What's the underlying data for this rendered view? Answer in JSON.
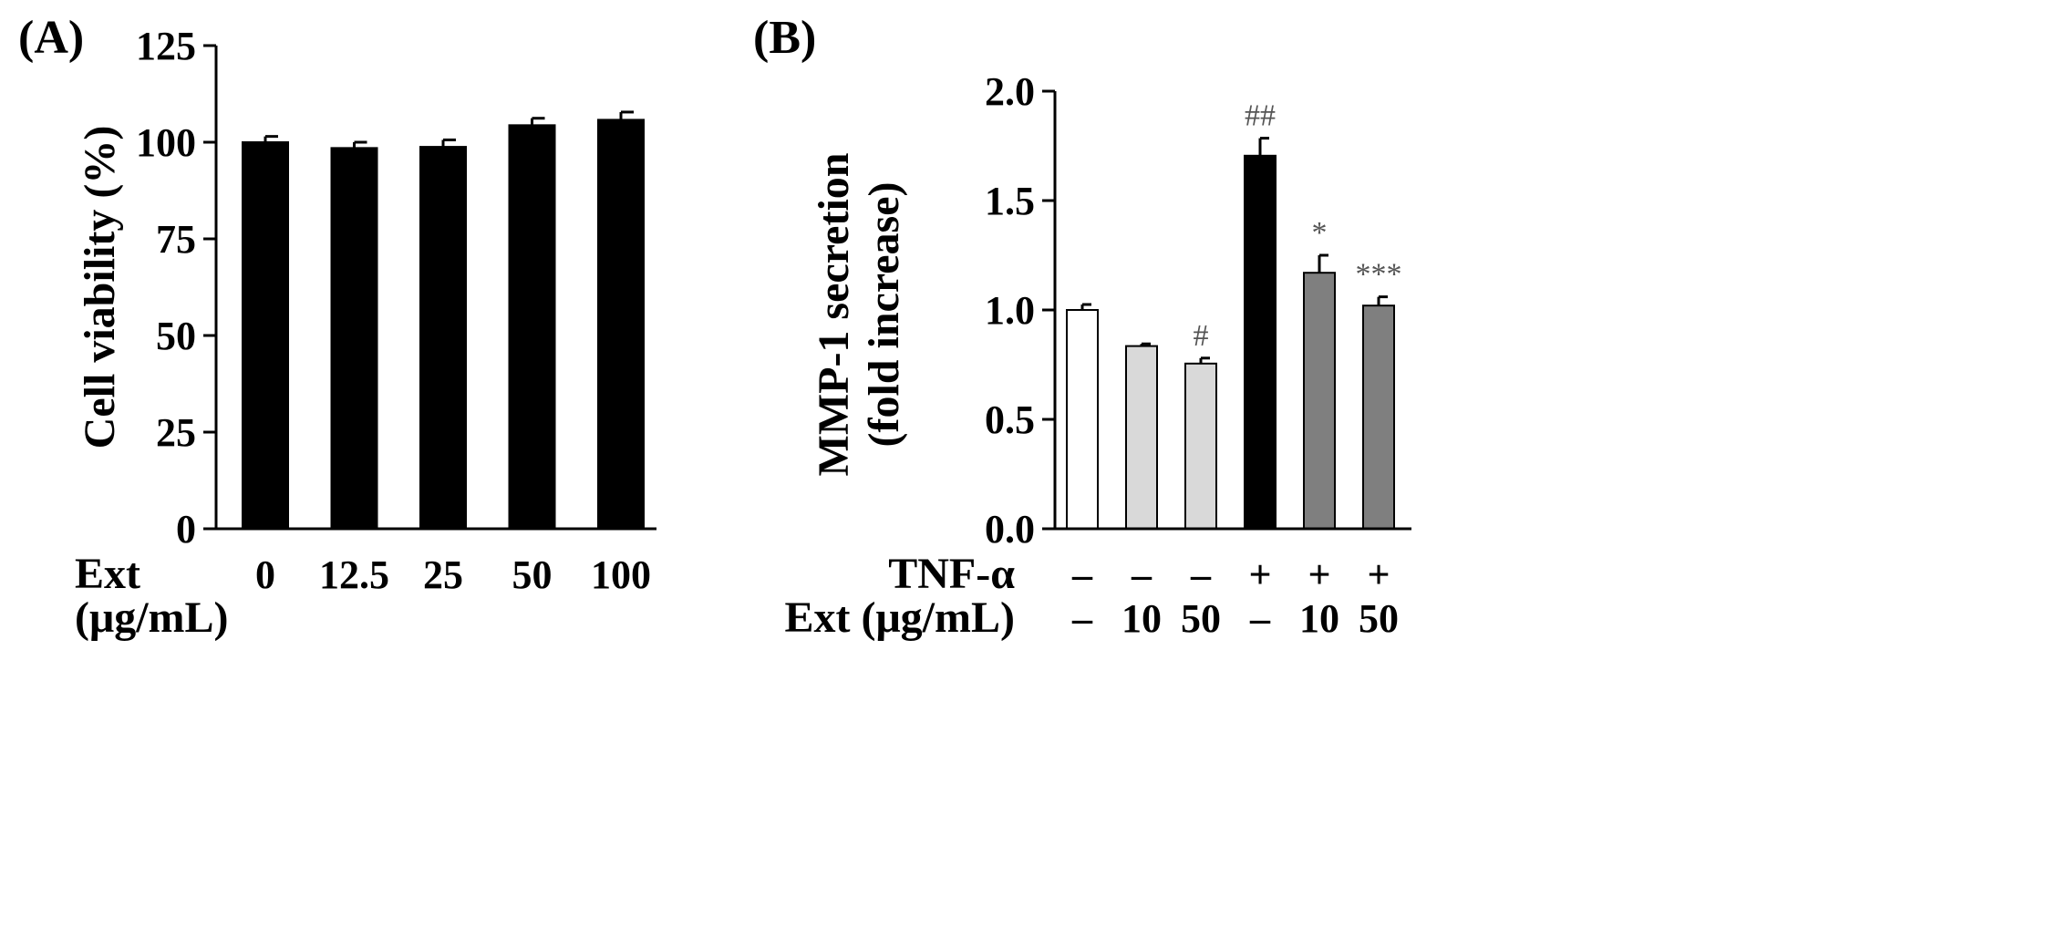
{
  "chart_data": [
    {
      "panel": "(A)",
      "type": "bar",
      "ylabel": "Cell viability (%)",
      "ylim": [
        0,
        125
      ],
      "yticks": [
        "0",
        "25",
        "50",
        "75",
        "100",
        "125"
      ],
      "ytick_values": [
        0,
        25,
        50,
        75,
        100,
        125
      ],
      "x_row_label_line1": "Ext",
      "x_row_label_line2": "(μg/mL)",
      "categories": [
        "0",
        "12.5",
        "25",
        "50",
        "100"
      ],
      "values": [
        100,
        98.5,
        98.8,
        104.4,
        105.8
      ],
      "errors": [
        1.5,
        1.5,
        1.8,
        1.8,
        2.0
      ],
      "bar_color": "#000000",
      "grid": false
    },
    {
      "panel": "(B)",
      "type": "bar",
      "ylabel_line1": "MMP-1 secretion",
      "ylabel_line2": "(fold increase)",
      "ylim": [
        0,
        2.0
      ],
      "yticks": [
        "0.0",
        "0.5",
        "1.0",
        "1.5",
        "2.0"
      ],
      "ytick_values": [
        0,
        0.5,
        1.0,
        1.5,
        2.0
      ],
      "row1_label": "TNF-α",
      "row1_values": [
        "–",
        "–",
        "–",
        "+",
        "+",
        "+"
      ],
      "row2_label": "Ext (μg/mL)",
      "row2_values": [
        "–",
        "10",
        "50",
        "–",
        "10",
        "50"
      ],
      "values": [
        1.0,
        0.835,
        0.755,
        1.705,
        1.17,
        1.02
      ],
      "errors": [
        0.025,
        0.01,
        0.025,
        0.08,
        0.08,
        0.04
      ],
      "bar_colors": [
        "#ffffff",
        "#d9d9d9",
        "#d9d9d9",
        "#000000",
        "#7f7f7f",
        "#7f7f7f"
      ],
      "significance": [
        "",
        "",
        "#",
        "##",
        "*",
        "***"
      ],
      "grid": false
    }
  ]
}
